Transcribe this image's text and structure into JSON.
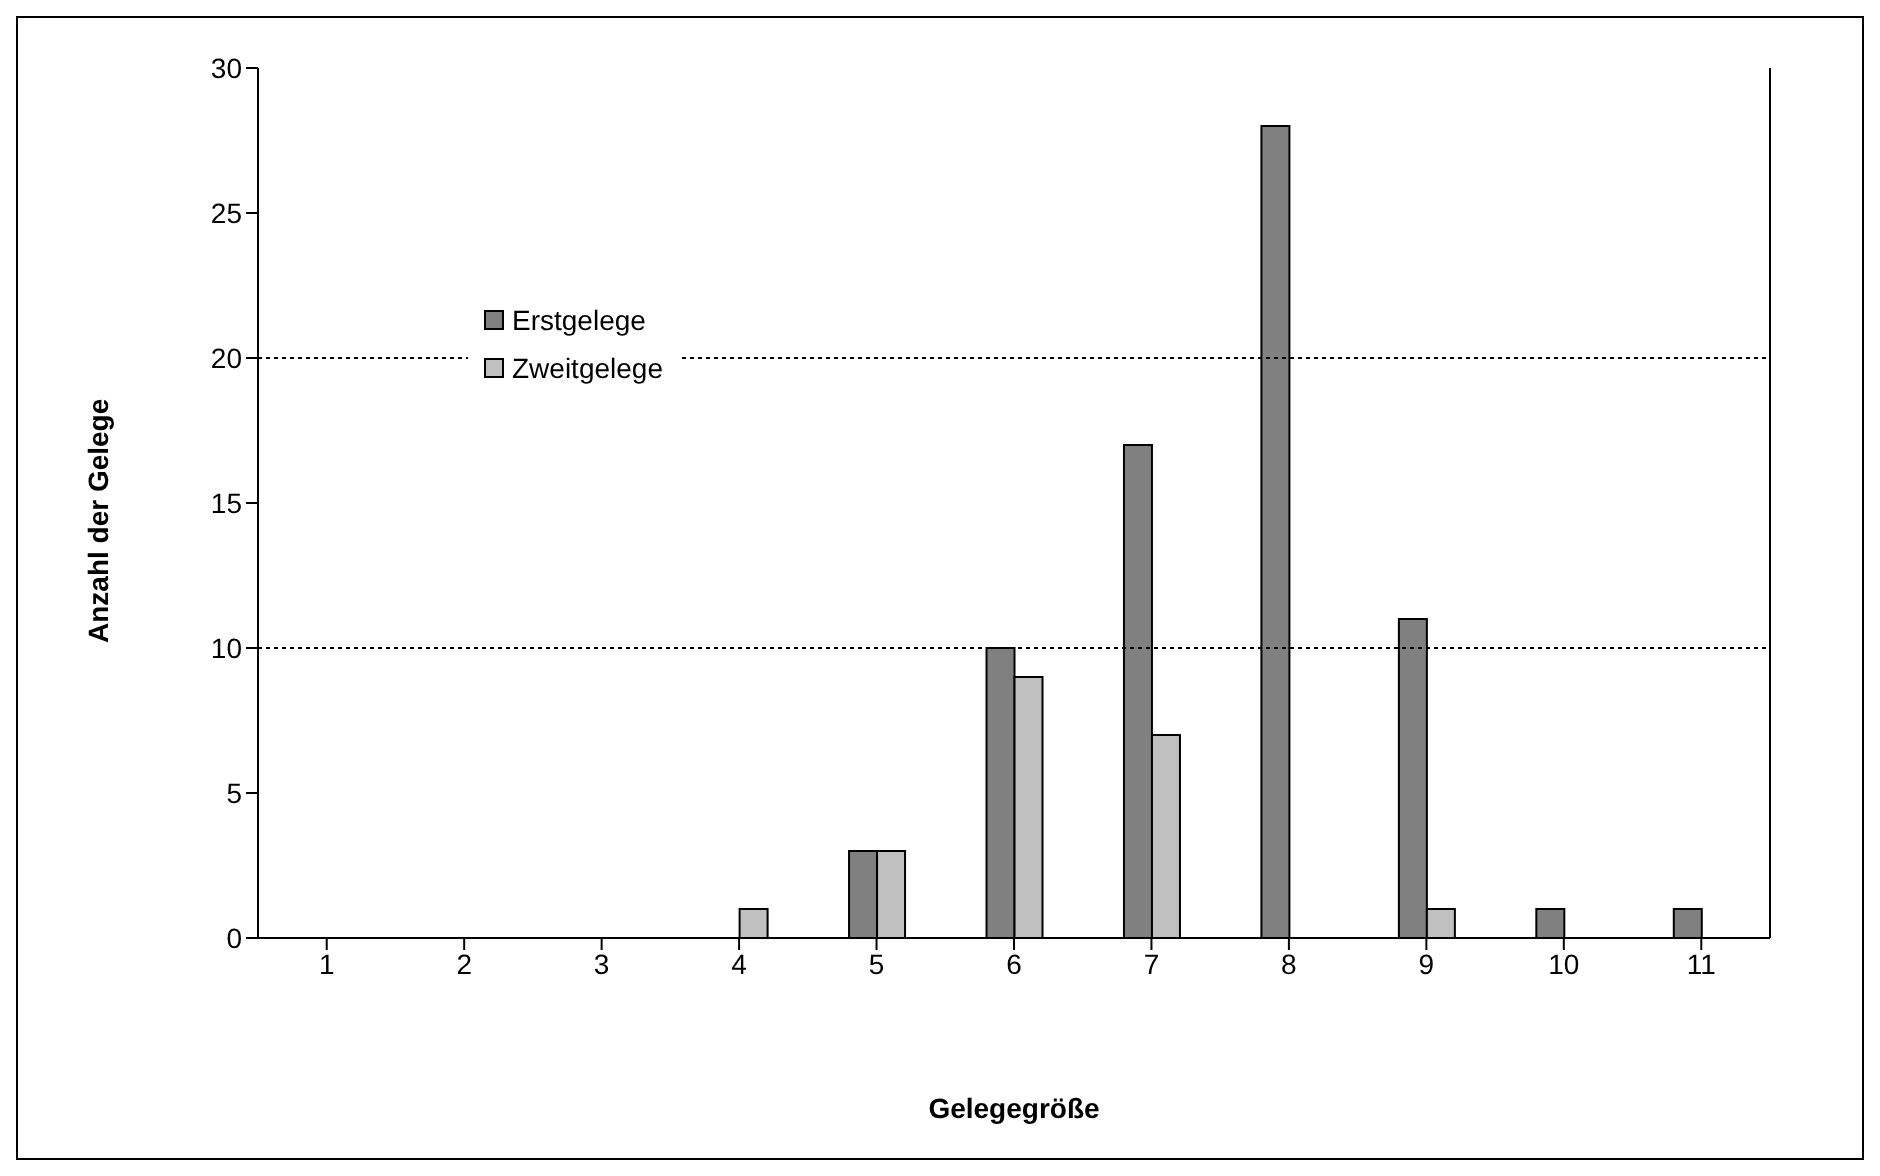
{
  "chart_data": {
    "type": "bar",
    "xlabel": "Gelegegröße",
    "ylabel": "Anzahl der Gelege",
    "categories": [
      "1",
      "2",
      "3",
      "4",
      "5",
      "6",
      "7",
      "8",
      "9",
      "10",
      "11"
    ],
    "series": [
      {
        "name": "Erstgelege",
        "color": "#808080",
        "values": [
          0,
          0,
          0,
          0,
          3,
          10,
          17,
          28,
          11,
          1,
          1
        ]
      },
      {
        "name": "Zweitgelege",
        "color": "#c0c0c0",
        "values": [
          0,
          0,
          0,
          1,
          3,
          9,
          7,
          0,
          1,
          0,
          0
        ]
      }
    ],
    "ylim": [
      0,
      30
    ],
    "yticks": [
      0,
      5,
      10,
      15,
      20,
      25,
      30
    ],
    "ref_lines": [
      {
        "axis": "y",
        "value": 10,
        "line_style": "dotted"
      },
      {
        "axis": "y",
        "value": 20,
        "line_style": "dotted"
      }
    ],
    "legend": "top left",
    "grid": false
  }
}
